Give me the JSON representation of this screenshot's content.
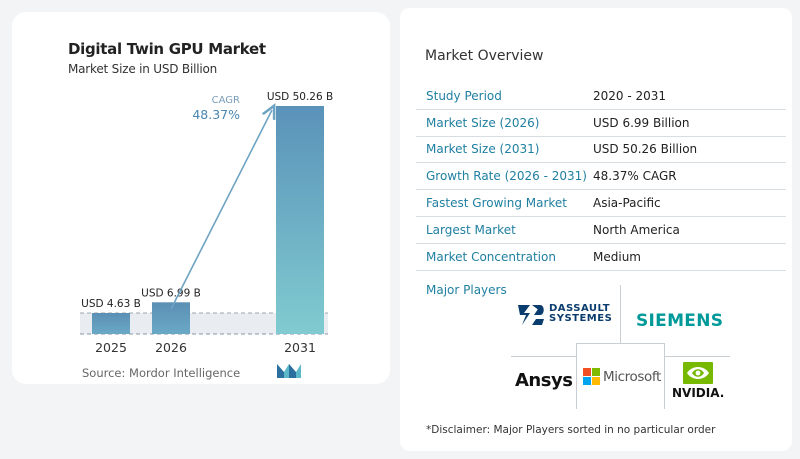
{
  "chart_data": {
    "type": "bar",
    "title": "Digital Twin GPU Market",
    "subtitle": "Market Size in USD Billion",
    "categories": [
      "2025",
      "2026",
      "2031"
    ],
    "values": [
      4.63,
      6.99,
      50.26
    ],
    "value_labels": [
      "USD 4.63 B",
      "USD 6.99 B",
      "USD 50.26 B"
    ],
    "cagr_label": "CAGR",
    "cagr_value": "48.37%",
    "ylim": [
      0,
      55
    ]
  },
  "source": "Source: Mordor Intelligence",
  "overview": {
    "title": "Market Overview",
    "rows": [
      {
        "label": "Study Period",
        "value": "2020 - 2031"
      },
      {
        "label": "Market Size (2026)",
        "value": "USD 6.99 Billion"
      },
      {
        "label": "Market Size (2031)",
        "value": "USD 50.26 Billion"
      },
      {
        "label": "Growth Rate (2026 - 2031)",
        "value": "48.37% CAGR"
      },
      {
        "label": "Fastest Growing Market",
        "value": "Asia-Pacific"
      },
      {
        "label": "Largest Market",
        "value": "North America"
      },
      {
        "label": "Market Concentration",
        "value": "Medium"
      }
    ]
  },
  "players": {
    "title": "Major Players",
    "logos": {
      "dassault_1": "DASSAULT",
      "dassault_2": "SYSTEMES",
      "siemens": "SIEMENS",
      "ansys": "Ansys",
      "microsoft": "Microsoft",
      "nvidia": "NVIDIA."
    }
  },
  "disclaimer": "*Disclaimer: Major Players sorted in no particular order",
  "colors": {
    "bar_small": "#5f8fb0",
    "bar_big_top": "#5b94b8",
    "bar_big_bottom": "#7fcad0",
    "accent": "#1f7fa0",
    "siemens": "#009999",
    "nvidia": "#76b900"
  }
}
